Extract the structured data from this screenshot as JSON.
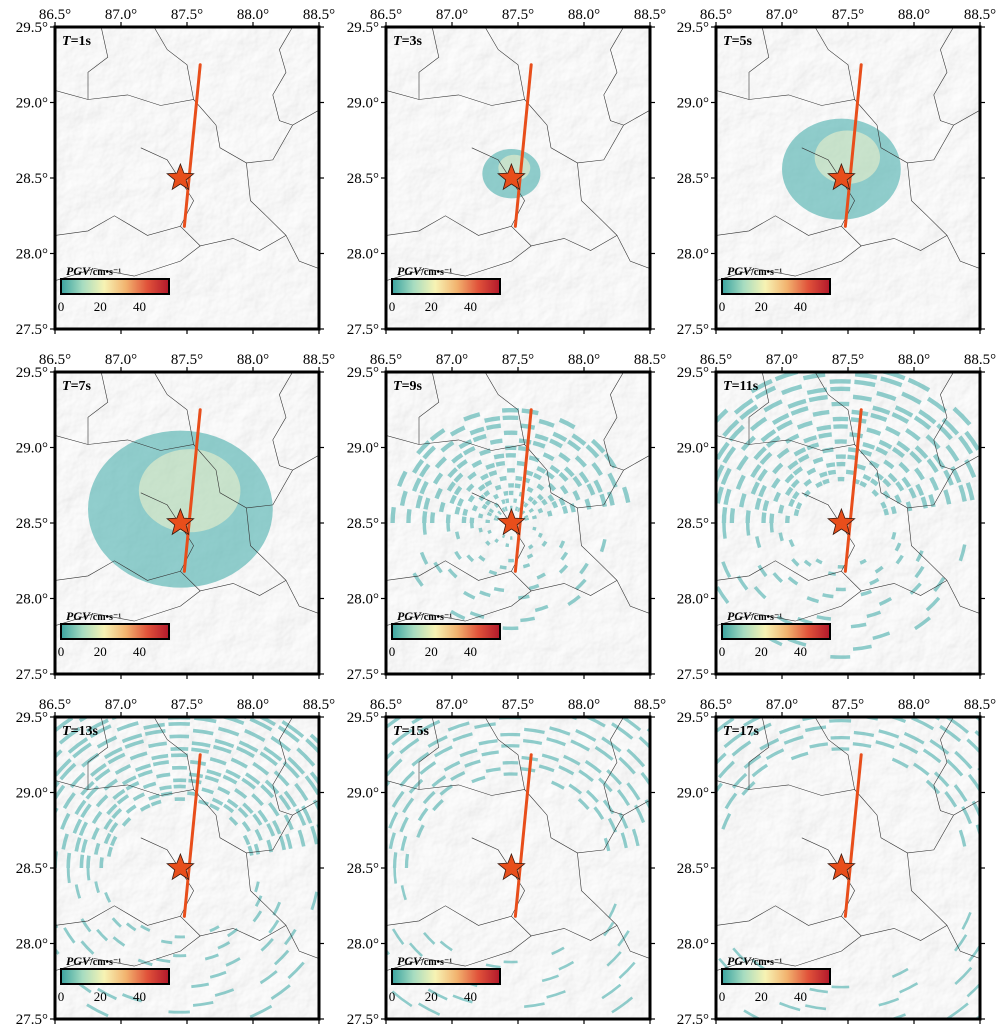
{
  "figure": {
    "x_ticks": [
      "86.5°",
      "87.0°",
      "87.5°",
      "88.0°",
      "88.5°"
    ],
    "y_ticks": [
      "29.5°",
      "29.0°",
      "28.5°",
      "28.0°",
      "27.5°"
    ],
    "colorbar": {
      "label_var": "PGV",
      "label_unit": "/cm•s⁻¹",
      "ticks": [
        "0",
        "20",
        "40"
      ],
      "range": [
        0,
        55
      ],
      "colors": [
        "#3aa3a0",
        "#a7dcc0",
        "#f7f3b4",
        "#f2b36f",
        "#e0523a",
        "#b2182b"
      ]
    },
    "fault_color": "#e84e1b",
    "epicenter_color": "#e84e1b",
    "ground_motion_color": "#57b5b3",
    "panels": [
      {
        "var": "T",
        "value": "=1s"
      },
      {
        "var": "T",
        "value": "=3s"
      },
      {
        "var": "T",
        "value": "=5s"
      },
      {
        "var": "T",
        "value": "=7s"
      },
      {
        "var": "T",
        "value": "=9s"
      },
      {
        "var": "T",
        "value": "=11s"
      },
      {
        "var": "T",
        "value": "=13s"
      },
      {
        "var": "T",
        "value": "=15s"
      },
      {
        "var": "T",
        "value": "=17s"
      }
    ]
  }
}
